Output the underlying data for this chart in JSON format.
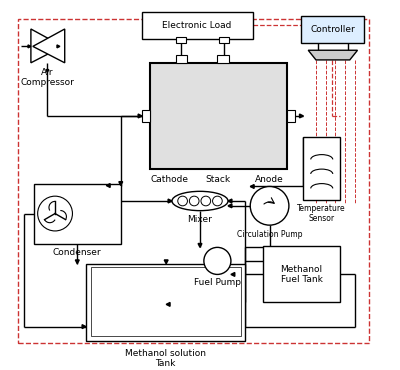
{
  "bg_color": "#ffffff",
  "line_color": "#000000",
  "dashed_color": "#cc3333",
  "stack_fill": "#e0e0e0",
  "controller_fill": "#ddeeff",
  "labels": {
    "electronic_load": "Electronic Load",
    "controller": "Controller",
    "cathode": "Cathode",
    "stack": "Stack",
    "anode": "Anode",
    "air_compressor": "Air\nCompressor",
    "condenser": "Condenser",
    "mixer": "Mixer",
    "circulation_pump": "Circulation Pump",
    "temperature_sensor": "Temperature\nSensor",
    "fuel_pump": "Fuel Pump",
    "methanol_fuel_tank": "Methanol\nFuel Tank",
    "methanol_solution_tank": "Methanol solution\nTank"
  },
  "font_size": 6.5
}
